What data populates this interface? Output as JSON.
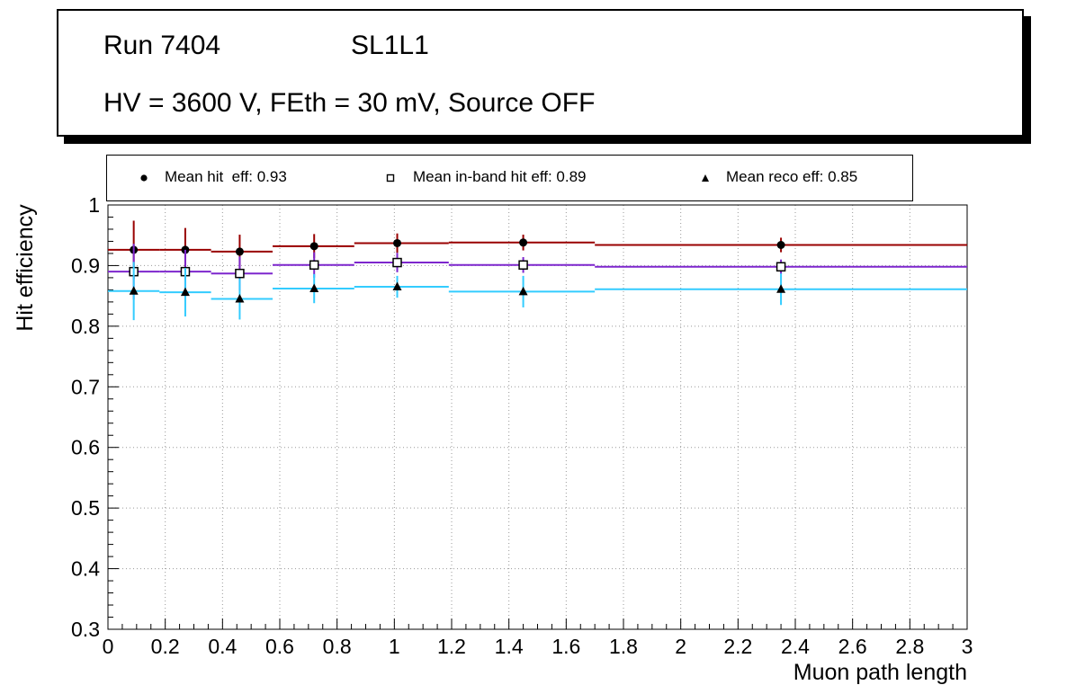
{
  "title_box": {
    "run_label": "Run 7404",
    "layer_label": "SL1L1",
    "conditions_label": "HV = 3600 V, FEth = 30 mV, Source OFF"
  },
  "legend": {
    "position": "top",
    "entries": [
      {
        "marker": "filled-circle",
        "label": "Mean hit  eff: 0.93"
      },
      {
        "marker": "open-square",
        "label": "Mean in-band hit eff: 0.89"
      },
      {
        "marker": "filled-triangle",
        "label": "Mean reco eff: 0.85"
      }
    ]
  },
  "chart_data": {
    "type": "scatter",
    "title": "",
    "xlabel": "Muon path length",
    "ylabel": "Hit efficiency",
    "xlim": [
      0,
      3
    ],
    "ylim": [
      0.3,
      1
    ],
    "grid": true,
    "grid_style": "dotted",
    "x_ticks": [
      0,
      0.2,
      0.4,
      0.6,
      0.8,
      1,
      1.2,
      1.4,
      1.6,
      1.8,
      2,
      2.2,
      2.4,
      2.6,
      2.8,
      3
    ],
    "x_tick_labels": [
      "0",
      "0.2",
      "0.4",
      "0.6",
      "0.8",
      "1",
      "1.2",
      "1.4",
      "1.6",
      "1.8",
      "2",
      "2.2",
      "2.4",
      "2.6",
      "2.8",
      "3"
    ],
    "y_ticks": [
      0.3,
      0.4,
      0.5,
      0.6,
      0.7,
      0.8,
      0.9,
      1
    ],
    "y_tick_labels": [
      "0.3",
      "0.4",
      "0.5",
      "0.6",
      "0.7",
      "0.8",
      "0.9",
      "1"
    ],
    "bins": [
      [
        0,
        0.18
      ],
      [
        0.18,
        0.36
      ],
      [
        0.36,
        0.575
      ],
      [
        0.575,
        0.86
      ],
      [
        0.86,
        1.19
      ],
      [
        1.19,
        1.7
      ],
      [
        1.7,
        3.0
      ]
    ],
    "series": [
      {
        "id": "hit",
        "name": "Mean hit eff",
        "mean": 0.93,
        "marker": "filled-circle",
        "color": "#990000",
        "x": [
          0.09,
          0.27,
          0.46,
          0.72,
          1.01,
          1.45,
          2.35
        ],
        "y": [
          0.926,
          0.926,
          0.923,
          0.932,
          0.937,
          0.938,
          0.934
        ],
        "ey": [
          0.048,
          0.036,
          0.028,
          0.02,
          0.016,
          0.013,
          0.012
        ]
      },
      {
        "id": "inband",
        "name": "Mean in-band hit eff",
        "mean": 0.89,
        "marker": "open-square",
        "color": "#7d26cd",
        "x": [
          0.09,
          0.27,
          0.46,
          0.72,
          1.01,
          1.45,
          2.35
        ],
        "y": [
          0.89,
          0.89,
          0.887,
          0.901,
          0.905,
          0.901,
          0.898
        ],
        "ey": [
          0.046,
          0.036,
          0.028,
          0.021,
          0.016,
          0.013,
          0.012
        ]
      },
      {
        "id": "reco",
        "name": "Mean reco eff",
        "mean": 0.85,
        "marker": "filled-triangle",
        "color": "#33ccff",
        "x": [
          0.09,
          0.27,
          0.46,
          0.72,
          1.01,
          1.45,
          2.35
        ],
        "y": [
          0.858,
          0.856,
          0.845,
          0.862,
          0.865,
          0.857,
          0.861
        ],
        "ey": [
          0.048,
          0.04,
          0.034,
          0.024,
          0.018,
          0.026,
          0.026
        ]
      }
    ]
  }
}
